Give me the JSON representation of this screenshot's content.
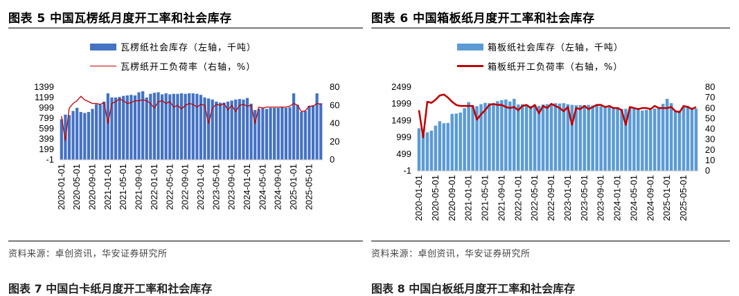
{
  "chart_data": [
    {
      "type": "bar",
      "title": "图表 5 中国瓦楞纸月度开工率和社会库存",
      "legend": [
        "瓦楞纸社会库存（左轴，千吨）",
        "瓦楞纸开工负荷率（右轴，%）"
      ],
      "source": "资料来源：卓创资讯，华安证券研究所",
      "colors": {
        "bar": "#4472C4",
        "line": "#C00000"
      },
      "y_left": {
        "ticks": [
          -1,
          199,
          399,
          599,
          799,
          999,
          1199,
          1399
        ],
        "lim": [
          -1,
          1399
        ]
      },
      "y_right": {
        "ticks": [
          0,
          20,
          40,
          60,
          80
        ],
        "lim": [
          0,
          80
        ]
      },
      "x_labels": [
        "2020-01-01",
        "2020-05-01",
        "2020-09-01",
        "2021-01-01",
        "2021-05-01",
        "2021-09-01",
        "2022-01-01",
        "2022-05-01",
        "2022-09-01",
        "2023-01-01",
        "2023-05-01",
        "2023-09-01",
        "2024-01-01",
        "2024-05-01",
        "2024-09-01",
        "2025-01-01",
        "2025-05-01"
      ],
      "series": [
        {
          "name": "瓦楞纸社会库存（左轴，千吨）",
          "axis": "left",
          "kind": "bar",
          "values": [
            780,
            870,
            860,
            940,
            1000,
            920,
            900,
            920,
            980,
            1070,
            1060,
            1120,
            1280,
            1200,
            1200,
            1210,
            1230,
            1240,
            1250,
            1240,
            1300,
            1320,
            1200,
            1270,
            1290,
            1300,
            1260,
            1280,
            1260,
            1270,
            1270,
            1280,
            1270,
            1280,
            1280,
            1270,
            1250,
            1200,
            1180,
            1160,
            1120,
            1100,
            1100,
            1120,
            1140,
            1160,
            1170,
            1160,
            1190,
            1080,
            960,
            980,
            990,
            980,
            1000,
            1000,
            1000,
            1010,
            1000,
            1010,
            1280,
            1060,
            920,
            940,
            1040,
            1050,
            1280,
            1090
          ]
        },
        {
          "name": "瓦楞纸开工负荷率（右轴，%）",
          "axis": "right",
          "kind": "line",
          "values": [
            48,
            21,
            57,
            62,
            65,
            70,
            66,
            64,
            62,
            62,
            61,
            63,
            40,
            62,
            64,
            67,
            65,
            62,
            63,
            65,
            65,
            66,
            65,
            62,
            57,
            64,
            65,
            62,
            64,
            58,
            60,
            56,
            60,
            62,
            61,
            58,
            61,
            60,
            40,
            57,
            61,
            60,
            62,
            55,
            60,
            53,
            60,
            61,
            59,
            60,
            40,
            58,
            57,
            58,
            58,
            58,
            58,
            58,
            58,
            59,
            62,
            60,
            53,
            54,
            59,
            59,
            62,
            61
          ]
        }
      ]
    },
    {
      "type": "bar",
      "title": "图表 6 中国箱板纸月度开工率和社会库存",
      "legend": [
        "箱板纸社会库存（左轴，千吨）",
        "箱板纸开工负荷率（右轴，%）"
      ],
      "source": "资料来源：卓创资讯，华安证券研究所",
      "colors": {
        "bar": "#5B9BD5",
        "line": "#C00000"
      },
      "y_left": {
        "ticks": [
          -1,
          499,
          999,
          1499,
          1999,
          2499
        ],
        "lim": [
          -1,
          2499
        ]
      },
      "y_right": {
        "ticks": [
          0,
          10,
          20,
          30,
          40,
          50,
          60,
          70,
          80
        ],
        "lim": [
          0,
          80
        ]
      },
      "x_labels": [
        "2020-01-01",
        "2020-05-01",
        "2020-09-01",
        "2021-01-01",
        "2021-05-01",
        "2021-09-01",
        "2022-01-01",
        "2022-05-01",
        "2022-09-01",
        "2023-01-01",
        "2023-05-01",
        "2023-09-01",
        "2024-01-01",
        "2024-05-01",
        "2024-09-01",
        "2025-01-01",
        "2025-05-01"
      ],
      "series": [
        {
          "name": "箱板纸社会库存（左轴，千吨）",
          "axis": "left",
          "kind": "bar",
          "values": [
            1270,
            1100,
            1150,
            1200,
            1350,
            1480,
            1420,
            1430,
            1700,
            1710,
            1740,
            1870,
            2050,
            1950,
            1930,
            1990,
            2030,
            2020,
            2010,
            2080,
            2110,
            2130,
            2070,
            2150,
            1980,
            1990,
            1930,
            1940,
            1960,
            1940,
            1980,
            1990,
            2000,
            2020,
            2010,
            2020,
            1990,
            1970,
            1960,
            1960,
            1960,
            1970,
            1950,
            1960,
            1930,
            1920,
            1900,
            1890,
            1900,
            1850,
            1850,
            1870,
            1880,
            1860,
            1800,
            1820,
            1830,
            1860,
            1900,
            2000,
            2150,
            2020,
            1780,
            1800,
            1900,
            1940,
            1890,
            1860
          ]
        },
        {
          "name": "箱板纸开工负荷率（右轴，%）",
          "axis": "right",
          "kind": "line",
          "values": [
            58,
            32,
            66,
            65,
            68,
            72,
            73,
            70,
            66,
            63,
            62,
            62,
            62,
            62,
            49,
            54,
            58,
            63,
            64,
            63,
            63,
            61,
            60,
            61,
            58,
            62,
            63,
            60,
            63,
            55,
            62,
            60,
            64,
            62,
            60,
            57,
            61,
            44,
            60,
            59,
            62,
            59,
            61,
            63,
            63,
            61,
            62,
            60,
            60,
            58,
            44,
            61,
            60,
            59,
            60,
            60,
            59,
            62,
            60,
            60,
            60,
            61,
            57,
            56,
            62,
            61,
            59,
            61
          ]
        }
      ]
    }
  ],
  "page": {
    "top_text_left": "",
    "top_text_right": "",
    "next_title_left": "图表 7 中国白卡纸月度开工率和社会库存",
    "next_title_right": "图表 8 中国白板纸月度开工率和社会库存"
  }
}
